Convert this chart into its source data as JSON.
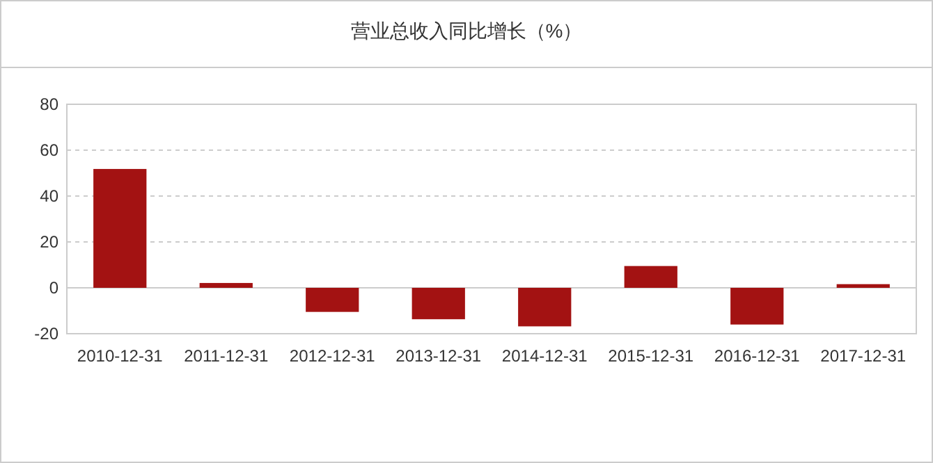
{
  "chart_data": {
    "type": "bar",
    "title": "营业总收入同比增长（%）",
    "categories": [
      "2010-12-31",
      "2011-12-31",
      "2012-12-31",
      "2013-12-31",
      "2014-12-31",
      "2015-12-31",
      "2016-12-31",
      "2017-12-31"
    ],
    "values": [
      51.8,
      2.1,
      -10.5,
      -13.7,
      -16.8,
      9.5,
      -16.0,
      1.6
    ],
    "color": "#a31212",
    "ylim": [
      -20,
      80
    ],
    "yticks": [
      -20,
      0,
      20,
      40,
      60,
      80
    ],
    "grid": "y"
  }
}
